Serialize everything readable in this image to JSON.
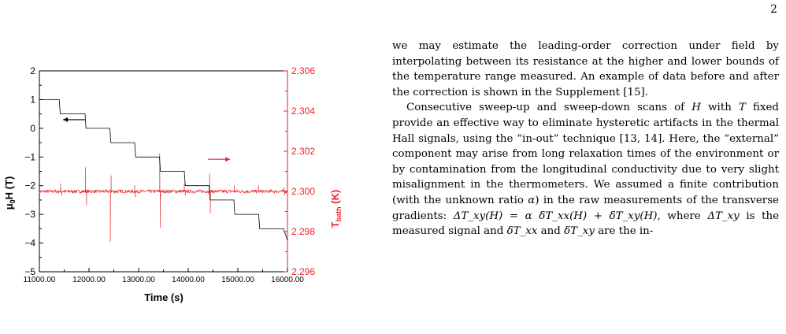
{
  "page": {
    "number": "2"
  },
  "chart_data": {
    "type": "line",
    "xlabel": "Time (s)",
    "ylabel_left_main": "μ",
    "ylabel_left_sub": "0",
    "ylabel_left_rest": "H (T)",
    "ylabel_right_main": "T",
    "ylabel_right_sub": "bath",
    "ylabel_right_rest": " (K)",
    "xlim": [
      11000,
      16000
    ],
    "ylim_left": [
      -5,
      2
    ],
    "ylim_right": [
      2.296,
      2.306
    ],
    "x_ticks": [
      "11000.00",
      "12000.00",
      "13000.00",
      "14000.00",
      "15000.00",
      "16000.00"
    ],
    "y_left_ticks": [
      "2",
      "1",
      "0",
      "−1",
      "−2",
      "−3",
      "−4",
      "−5"
    ],
    "y_right_ticks": [
      "2.306",
      "2.304",
      "2.302",
      "2.300",
      "2.298",
      "2.296"
    ],
    "colors": {
      "field": "#000000",
      "temperature": "#e8232a"
    },
    "series": [
      {
        "name": "field",
        "axis": "left",
        "points": [
          [
            11000,
            1.0
          ],
          [
            11400,
            1.0
          ],
          [
            11420,
            0.5
          ],
          [
            11920,
            0.5
          ],
          [
            11940,
            0.0
          ],
          [
            12420,
            0.0
          ],
          [
            12440,
            -0.5
          ],
          [
            12920,
            -0.5
          ],
          [
            12940,
            -1.0
          ],
          [
            13420,
            -1.0
          ],
          [
            13440,
            -1.5
          ],
          [
            13920,
            -1.5
          ],
          [
            13940,
            -2.0
          ],
          [
            14420,
            -2.0
          ],
          [
            14440,
            -2.5
          ],
          [
            14920,
            -2.5
          ],
          [
            14940,
            -3.0
          ],
          [
            15420,
            -3.0
          ],
          [
            15440,
            -3.5
          ],
          [
            15920,
            -3.5
          ],
          [
            16000,
            -3.9
          ]
        ]
      },
      {
        "name": "temperature",
        "axis": "right",
        "baseline": 2.3,
        "noise": 8e-05,
        "spikes": [
          [
            11430,
            2.3004
          ],
          [
            11450,
            2.2998
          ],
          [
            11930,
            2.3012
          ],
          [
            11950,
            2.2993
          ],
          [
            12430,
            2.2975
          ],
          [
            12445,
            2.3008
          ],
          [
            12920,
            2.3003
          ],
          [
            12935,
            2.2997
          ],
          [
            12950,
            2.3
          ],
          [
            13425,
            2.3019
          ],
          [
            13440,
            2.2996
          ],
          [
            13435,
            2.2982
          ],
          [
            13920,
            2.3004
          ],
          [
            13940,
            2.2998
          ],
          [
            14430,
            2.3009
          ],
          [
            14445,
            2.2989
          ],
          [
            14930,
            2.3003
          ],
          [
            15420,
            2.3003
          ],
          [
            15930,
            2.3002
          ],
          [
            15945,
            2.2998
          ],
          [
            16000,
            2.3002
          ]
        ]
      }
    ],
    "annotations": [
      {
        "type": "arrow",
        "direction": "left",
        "series": "field",
        "at": [
          11700,
          0.3
        ]
      },
      {
        "type": "arrow",
        "direction": "right",
        "series": "temperature",
        "at": [
          14620,
          2.3016
        ]
      }
    ]
  },
  "text": {
    "p1": "we may estimate the leading-order correction under field by interpolating between its resistance at the higher and lower bounds of the temperature range measured. An example of data before and after the correction is shown in the Supplement [15].",
    "p2_a": "Consecutive sweep-up and sweep-down scans of ",
    "p2_H1": "H",
    "p2_b": " with ",
    "p2_T": "T",
    "p2_c": " fixed provide an effective way to eliminate hysteretic artifacts in the thermal Hall signals, using the “in-out” technique [13, 14]. Here, the “external” component may arise from long relaxation times of the environment or by contamination from the longitudinal conductivity due to very slight misalignment in the thermometers. We assumed a finite contribution (with the unknown ratio ",
    "p2_alpha1": "α",
    "p2_d": ") in the raw measurements of the transverse gradients: ",
    "p2_eq": "ΔT_xy(H) = α δT_xx(H) + δT_xy(H)",
    "p2_e": ", where ",
    "p2_meas": "ΔT_xy",
    "p2_f": " is the measured signal and ",
    "p2_dxx": "δT_xx",
    "p2_g": " and ",
    "p2_dxy": "δT_xy",
    "p2_h": " are the in-"
  }
}
